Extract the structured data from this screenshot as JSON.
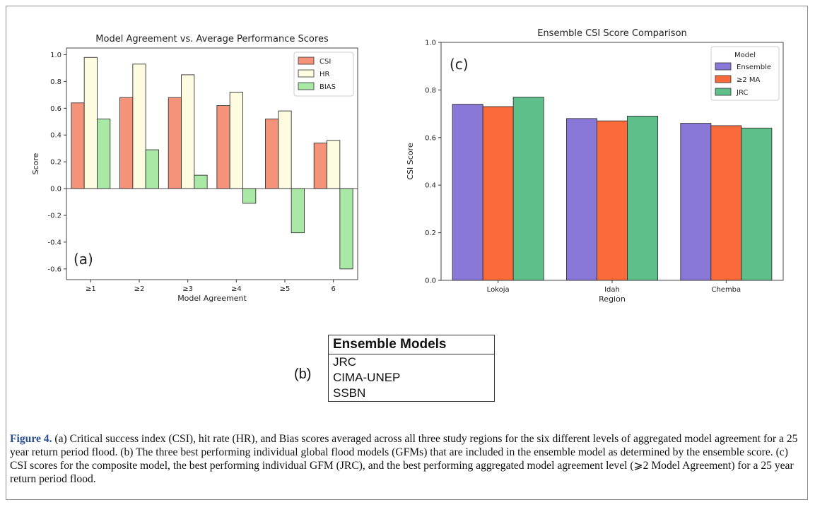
{
  "chart_data": [
    {
      "type": "bar",
      "title": "Model Agreement vs. Average Performance Scores",
      "xlabel": "Model Agreement",
      "ylabel": "Score",
      "ylim": [
        -0.68,
        1.05
      ],
      "yticks": [
        "-0.6",
        "-0.4",
        "-0.2",
        "0.0",
        "0.2",
        "0.4",
        "0.6",
        "0.8",
        "1.0"
      ],
      "categories": [
        "≥1",
        "≥2",
        "≥3",
        "≥4",
        "≥5",
        "6"
      ],
      "series": [
        {
          "name": "CSI",
          "color": "#f4927a",
          "values": [
            0.64,
            0.68,
            0.68,
            0.62,
            0.52,
            0.34
          ]
        },
        {
          "name": "HR",
          "color": "#fdfbe0",
          "values": [
            0.98,
            0.93,
            0.85,
            0.72,
            0.58,
            0.36
          ]
        },
        {
          "name": "BIAS",
          "color": "#a9e9a5",
          "values": [
            0.52,
            0.29,
            0.1,
            -0.11,
            -0.33,
            -0.6
          ]
        }
      ],
      "legend": "top-right",
      "panel_label": "(a)"
    },
    {
      "type": "bar",
      "title": "Ensemble CSI Score Comparison",
      "xlabel": "Region",
      "ylabel": "CSI Score",
      "ylim": [
        0.0,
        1.0
      ],
      "yticks": [
        "0.0",
        "0.2",
        "0.4",
        "0.6",
        "0.8",
        "1.0"
      ],
      "categories": [
        "Lokoja",
        "Idah",
        "Chemba"
      ],
      "legend_title": "Model",
      "series": [
        {
          "name": "Ensemble",
          "color": "#8a78d8",
          "values": [
            0.74,
            0.68,
            0.66
          ]
        },
        {
          "name": "≥2 MA",
          "color": "#fb6a3a",
          "values": [
            0.73,
            0.67,
            0.65
          ]
        },
        {
          "name": "JRC",
          "color": "#5fbf8a",
          "values": [
            0.77,
            0.69,
            0.64
          ]
        }
      ],
      "legend": "top-right",
      "panel_label": "(c)"
    }
  ],
  "table": {
    "panel_label": "(b)",
    "header": "Ensemble Models",
    "rows": [
      "JRC",
      "CIMA-UNEP",
      "SSBN"
    ]
  },
  "caption": {
    "label": "Figure 4.",
    "text": " (a) Critical success index (CSI), hit rate (HR), and Bias scores averaged across all three study regions for the six different levels of aggregated model agreement for a 25 year return period flood. (b) The three best performing individual global flood models (GFMs) that are included in the ensemble model as determined by the ensemble score. (c) CSI scores for the composite model, the best performing individual GFM (JRC), and the best performing aggregated model agreement level (⩾2 Model Agreement) for a 25 year return period flood."
  }
}
